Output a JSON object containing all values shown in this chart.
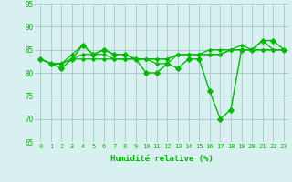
{
  "series": [
    [
      83,
      82,
      82,
      84,
      86,
      84,
      85,
      84,
      84,
      83,
      83,
      82,
      82,
      84,
      84,
      84,
      85,
      85,
      85,
      86,
      85,
      87,
      85,
      85
    ],
    [
      83,
      82,
      82,
      83,
      84,
      84,
      84,
      83,
      83,
      83,
      83,
      83,
      83,
      84,
      84,
      84,
      84,
      84,
      85,
      85,
      85,
      85,
      85,
      85
    ],
    [
      83,
      82,
      82,
      83,
      83,
      83,
      83,
      83,
      83,
      83,
      83,
      83,
      83,
      84,
      84,
      84,
      84,
      84,
      85,
      85,
      85,
      85,
      85,
      85
    ]
  ],
  "volatile_series": [
    83,
    82,
    81,
    83,
    86,
    84,
    85,
    84,
    84,
    83,
    80,
    80,
    82,
    81,
    83,
    83,
    76,
    70,
    72,
    85,
    85,
    87,
    87,
    85
  ],
  "line_color": "#00bb00",
  "bg_color": "#d8f0f0",
  "grid_color": "#a8cece",
  "x_label": "Humidité relative (%)",
  "ylim": [
    65,
    95
  ],
  "xlim_min": -0.5,
  "xlim_max": 23.5,
  "yticks": [
    65,
    70,
    75,
    80,
    85,
    90,
    95
  ],
  "xticks": [
    0,
    1,
    2,
    3,
    4,
    5,
    6,
    7,
    8,
    9,
    10,
    11,
    12,
    13,
    14,
    15,
    16,
    17,
    18,
    19,
    20,
    21,
    22,
    23
  ]
}
